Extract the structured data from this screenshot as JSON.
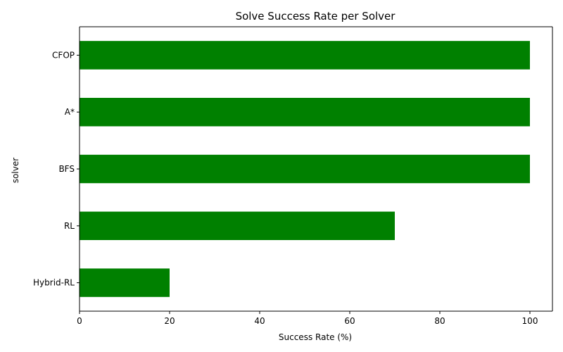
{
  "chart_data": {
    "type": "bar",
    "orientation": "horizontal",
    "title": "Solve Success Rate per Solver",
    "xlabel": "Success Rate (%)",
    "ylabel": "solver",
    "categories": [
      "Hybrid-RL",
      "RL",
      "BFS",
      "A*",
      "CFOP"
    ],
    "values": [
      20,
      70,
      100,
      100,
      100
    ],
    "xlim": [
      0,
      105
    ],
    "xticks": [
      0,
      20,
      40,
      60,
      80,
      100
    ],
    "grid": false,
    "legend": "none",
    "bar_color": "#008000"
  }
}
